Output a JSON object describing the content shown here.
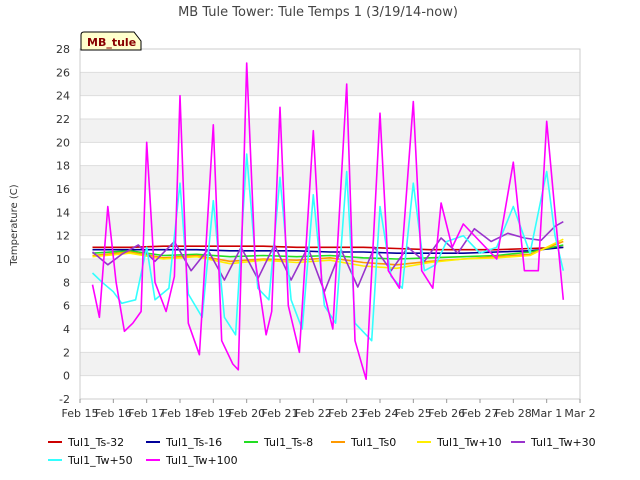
{
  "chart_data": {
    "type": "line",
    "title": "MB Tule Tower: Tule Temps 1 (3/19/14-now)",
    "xlabel": "",
    "ylabel": "Temperature (C)",
    "station_label": "MB_tule",
    "ylim": [
      -2,
      28
    ],
    "y_ticks": [
      -2,
      0,
      2,
      4,
      6,
      8,
      10,
      12,
      14,
      16,
      18,
      20,
      22,
      24,
      26,
      28
    ],
    "xlim": [
      "2014-02-15",
      "2014-03-02"
    ],
    "x_tick_labels": [
      "Feb 15",
      "Feb 16",
      "Feb 17",
      "Feb 18",
      "Feb 19",
      "Feb 20",
      "Feb 21",
      "Feb 22",
      "Feb 23",
      "Feb 24",
      "Feb 25",
      "Feb 26",
      "Feb 27",
      "Feb 28",
      "Mar 1",
      "Mar 2"
    ],
    "legend_position": "bottom",
    "grid": true,
    "series": [
      {
        "name": "Tul1_Ts-32",
        "color": "#cc0000",
        "points": [
          [
            "2014-02-15 09:00",
            11.0
          ],
          [
            "2014-02-16 12:00",
            11.0
          ],
          [
            "2014-02-17 12:00",
            11.1
          ],
          [
            "2014-02-18 12:00",
            11.1
          ],
          [
            "2014-02-19 12:00",
            11.1
          ],
          [
            "2014-02-20 12:00",
            11.1
          ],
          [
            "2014-02-21 12:00",
            11.0
          ],
          [
            "2014-02-22 12:00",
            11.0
          ],
          [
            "2014-02-23 12:00",
            11.0
          ],
          [
            "2014-02-24 12:00",
            10.9
          ],
          [
            "2014-02-25 12:00",
            10.8
          ],
          [
            "2014-02-26 12:00",
            10.8
          ],
          [
            "2014-02-27 12:00",
            10.8
          ],
          [
            "2014-02-28 12:00",
            10.9
          ],
          [
            "2014-03-01 12:00",
            11.0
          ]
        ]
      },
      {
        "name": "Tul1_Ts-16",
        "color": "#000099",
        "points": [
          [
            "2014-02-15 09:00",
            10.8
          ],
          [
            "2014-02-16 12:00",
            10.8
          ],
          [
            "2014-02-17 12:00",
            10.8
          ],
          [
            "2014-02-18 12:00",
            10.8
          ],
          [
            "2014-02-19 12:00",
            10.7
          ],
          [
            "2014-02-20 12:00",
            10.7
          ],
          [
            "2014-02-21 12:00",
            10.7
          ],
          [
            "2014-02-22 12:00",
            10.6
          ],
          [
            "2014-02-23 12:00",
            10.6
          ],
          [
            "2014-02-24 12:00",
            10.5
          ],
          [
            "2014-02-25 12:00",
            10.5
          ],
          [
            "2014-02-26 12:00",
            10.5
          ],
          [
            "2014-02-27 12:00",
            10.6
          ],
          [
            "2014-02-28 12:00",
            10.7
          ],
          [
            "2014-03-01 12:00",
            11.0
          ]
        ]
      },
      {
        "name": "Tul1_Ts-8",
        "color": "#22dd22",
        "points": [
          [
            "2014-02-15 09:00",
            10.5
          ],
          [
            "2014-02-16 12:00",
            10.7
          ],
          [
            "2014-02-17 12:00",
            10.3
          ],
          [
            "2014-02-18 12:00",
            10.4
          ],
          [
            "2014-02-19 12:00",
            10.2
          ],
          [
            "2014-02-20 12:00",
            10.3
          ],
          [
            "2014-02-21 12:00",
            10.2
          ],
          [
            "2014-02-22 12:00",
            10.3
          ],
          [
            "2014-02-23 12:00",
            10.1
          ],
          [
            "2014-02-24 12:00",
            10.0
          ],
          [
            "2014-02-25 12:00",
            10.1
          ],
          [
            "2014-02-26 12:00",
            10.2
          ],
          [
            "2014-02-27 12:00",
            10.3
          ],
          [
            "2014-02-28 12:00",
            10.6
          ],
          [
            "2014-03-01 12:00",
            11.2
          ]
        ]
      },
      {
        "name": "Tul1_Ts0",
        "color": "#ff9900",
        "points": [
          [
            "2014-02-15 09:00",
            10.3
          ],
          [
            "2014-02-16 12:00",
            10.6
          ],
          [
            "2014-02-17 12:00",
            10.1
          ],
          [
            "2014-02-18 12:00",
            10.3
          ],
          [
            "2014-02-19 12:00",
            9.8
          ],
          [
            "2014-02-20 12:00",
            10.0
          ],
          [
            "2014-02-21 12:00",
            9.9
          ],
          [
            "2014-02-22 12:00",
            10.1
          ],
          [
            "2014-02-23 12:00",
            9.7
          ],
          [
            "2014-02-24 12:00",
            9.5
          ],
          [
            "2014-02-25 12:00",
            9.8
          ],
          [
            "2014-02-26 12:00",
            10.0
          ],
          [
            "2014-02-27 12:00",
            10.2
          ],
          [
            "2014-02-28 12:00",
            10.4
          ],
          [
            "2014-03-01 12:00",
            11.5
          ]
        ]
      },
      {
        "name": "Tul1_Tw+10",
        "color": "#ffee00",
        "points": [
          [
            "2014-02-15 09:00",
            10.2
          ],
          [
            "2014-02-16 12:00",
            10.5
          ],
          [
            "2014-02-17 12:00",
            10.0
          ],
          [
            "2014-02-18 12:00",
            10.2
          ],
          [
            "2014-02-19 12:00",
            9.6
          ],
          [
            "2014-02-20 12:00",
            9.9
          ],
          [
            "2014-02-21 12:00",
            9.7
          ],
          [
            "2014-02-22 12:00",
            9.9
          ],
          [
            "2014-02-23 12:00",
            9.4
          ],
          [
            "2014-02-24 12:00",
            9.2
          ],
          [
            "2014-02-25 12:00",
            9.7
          ],
          [
            "2014-02-26 12:00",
            10.0
          ],
          [
            "2014-02-27 12:00",
            10.1
          ],
          [
            "2014-02-28 12:00",
            10.3
          ],
          [
            "2014-03-01 12:00",
            11.7
          ]
        ]
      },
      {
        "name": "Tul1_Tw+30",
        "color": "#9933cc",
        "points": [
          [
            "2014-02-15 09:00",
            10.6
          ],
          [
            "2014-02-15 20:00",
            9.5
          ],
          [
            "2014-02-16 06:00",
            10.4
          ],
          [
            "2014-02-16 18:00",
            11.2
          ],
          [
            "2014-02-17 06:00",
            9.8
          ],
          [
            "2014-02-17 20:00",
            11.5
          ],
          [
            "2014-02-18 08:00",
            9.0
          ],
          [
            "2014-02-18 20:00",
            10.8
          ],
          [
            "2014-02-19 08:00",
            8.2
          ],
          [
            "2014-02-19 20:00",
            11.0
          ],
          [
            "2014-02-20 08:00",
            8.3
          ],
          [
            "2014-02-20 20:00",
            11.2
          ],
          [
            "2014-02-21 08:00",
            8.2
          ],
          [
            "2014-02-21 20:00",
            11.0
          ],
          [
            "2014-02-22 08:00",
            7.2
          ],
          [
            "2014-02-22 20:00",
            10.8
          ],
          [
            "2014-02-23 08:00",
            7.6
          ],
          [
            "2014-02-23 20:00",
            11.0
          ],
          [
            "2014-02-24 08:00",
            9.0
          ],
          [
            "2014-02-24 20:00",
            11.0
          ],
          [
            "2014-02-25 08:00",
            9.8
          ],
          [
            "2014-02-25 20:00",
            11.8
          ],
          [
            "2014-02-26 08:00",
            10.5
          ],
          [
            "2014-02-26 20:00",
            12.6
          ],
          [
            "2014-02-27 08:00",
            11.5
          ],
          [
            "2014-02-27 20:00",
            12.2
          ],
          [
            "2014-02-28 08:00",
            11.8
          ],
          [
            "2014-02-28 20:00",
            11.6
          ],
          [
            "2014-03-01 06:00",
            12.8
          ],
          [
            "2014-03-01 12:00",
            13.2
          ]
        ]
      },
      {
        "name": "Tul1_Tw+50",
        "color": "#33ffff",
        "points": [
          [
            "2014-02-15 09:00",
            8.8
          ],
          [
            "2014-02-15 16:00",
            8.0
          ],
          [
            "2014-02-16 00:00",
            7.2
          ],
          [
            "2014-02-16 06:00",
            6.2
          ],
          [
            "2014-02-16 16:00",
            6.5
          ],
          [
            "2014-02-17 00:00",
            11.0
          ],
          [
            "2014-02-17 06:00",
            6.5
          ],
          [
            "2014-02-17 16:00",
            7.5
          ],
          [
            "2014-02-18 00:00",
            16.5
          ],
          [
            "2014-02-18 06:00",
            7.0
          ],
          [
            "2014-02-18 16:00",
            5.0
          ],
          [
            "2014-02-19 00:00",
            15.0
          ],
          [
            "2014-02-19 08:00",
            5.0
          ],
          [
            "2014-02-19 16:00",
            3.5
          ],
          [
            "2014-02-20 00:00",
            19.0
          ],
          [
            "2014-02-20 08:00",
            7.5
          ],
          [
            "2014-02-20 16:00",
            6.5
          ],
          [
            "2014-02-21 00:00",
            17.0
          ],
          [
            "2014-02-21 08:00",
            6.5
          ],
          [
            "2014-02-21 16:00",
            4.0
          ],
          [
            "2014-02-22 00:00",
            15.5
          ],
          [
            "2014-02-22 08:00",
            6.0
          ],
          [
            "2014-02-22 16:00",
            4.5
          ],
          [
            "2014-02-23 00:00",
            17.5
          ],
          [
            "2014-02-23 06:00",
            4.5
          ],
          [
            "2014-02-23 18:00",
            3.0
          ],
          [
            "2014-02-24 00:00",
            14.5
          ],
          [
            "2014-02-24 08:00",
            8.5
          ],
          [
            "2014-02-24 16:00",
            7.5
          ],
          [
            "2014-02-25 00:00",
            16.5
          ],
          [
            "2014-02-25 08:00",
            9.0
          ],
          [
            "2014-02-25 16:00",
            9.5
          ],
          [
            "2014-02-26 00:00",
            11.5
          ],
          [
            "2014-02-26 12:00",
            12.0
          ],
          [
            "2014-02-27 00:00",
            10.5
          ],
          [
            "2014-02-27 12:00",
            11.0
          ],
          [
            "2014-02-28 00:00",
            14.5
          ],
          [
            "2014-02-28 12:00",
            10.5
          ],
          [
            "2014-03-01 00:00",
            17.5
          ],
          [
            "2014-03-01 06:00",
            12.0
          ],
          [
            "2014-03-01 12:00",
            9.0
          ]
        ]
      },
      {
        "name": "Tul1_Tw+100",
        "color": "#ff00ff",
        "points": [
          [
            "2014-02-15 09:00",
            7.8
          ],
          [
            "2014-02-15 14:00",
            5.0
          ],
          [
            "2014-02-15 20:00",
            14.5
          ],
          [
            "2014-02-16 02:00",
            8.0
          ],
          [
            "2014-02-16 08:00",
            3.8
          ],
          [
            "2014-02-16 14:00",
            4.5
          ],
          [
            "2014-02-16 20:00",
            5.5
          ],
          [
            "2014-02-17 00:00",
            20.0
          ],
          [
            "2014-02-17 06:00",
            8.0
          ],
          [
            "2014-02-17 14:00",
            5.5
          ],
          [
            "2014-02-17 20:00",
            8.5
          ],
          [
            "2014-02-18 00:00",
            24.0
          ],
          [
            "2014-02-18 06:00",
            4.5
          ],
          [
            "2014-02-18 14:00",
            1.8
          ],
          [
            "2014-02-19 00:00",
            21.5
          ],
          [
            "2014-02-19 06:00",
            3.0
          ],
          [
            "2014-02-19 14:00",
            1.0
          ],
          [
            "2014-02-19 18:00",
            0.5
          ],
          [
            "2014-02-20 00:00",
            26.8
          ],
          [
            "2014-02-20 06:00",
            10.0
          ],
          [
            "2014-02-20 14:00",
            3.5
          ],
          [
            "2014-02-20 18:00",
            5.5
          ],
          [
            "2014-02-21 00:00",
            23.0
          ],
          [
            "2014-02-21 06:00",
            6.0
          ],
          [
            "2014-02-21 14:00",
            2.0
          ],
          [
            "2014-02-22 00:00",
            21.0
          ],
          [
            "2014-02-22 06:00",
            8.0
          ],
          [
            "2014-02-22 14:00",
            4.0
          ],
          [
            "2014-02-23 00:00",
            25.0
          ],
          [
            "2014-02-23 06:00",
            3.0
          ],
          [
            "2014-02-23 14:00",
            -0.3
          ],
          [
            "2014-02-24 00:00",
            22.5
          ],
          [
            "2014-02-24 06:00",
            9.0
          ],
          [
            "2014-02-24 14:00",
            7.5
          ],
          [
            "2014-02-25 00:00",
            23.5
          ],
          [
            "2014-02-25 06:00",
            9.0
          ],
          [
            "2014-02-25 14:00",
            7.5
          ],
          [
            "2014-02-25 20:00",
            14.8
          ],
          [
            "2014-02-26 04:00",
            11.0
          ],
          [
            "2014-02-26 12:00",
            13.0
          ],
          [
            "2014-02-27 00:00",
            11.5
          ],
          [
            "2014-02-27 12:00",
            10.0
          ],
          [
            "2014-02-28 00:00",
            18.3
          ],
          [
            "2014-02-28 08:00",
            9.0
          ],
          [
            "2014-02-28 18:00",
            9.0
          ],
          [
            "2014-03-01 00:00",
            21.8
          ],
          [
            "2014-03-01 06:00",
            14.0
          ],
          [
            "2014-03-01 12:00",
            6.5
          ]
        ]
      }
    ]
  }
}
